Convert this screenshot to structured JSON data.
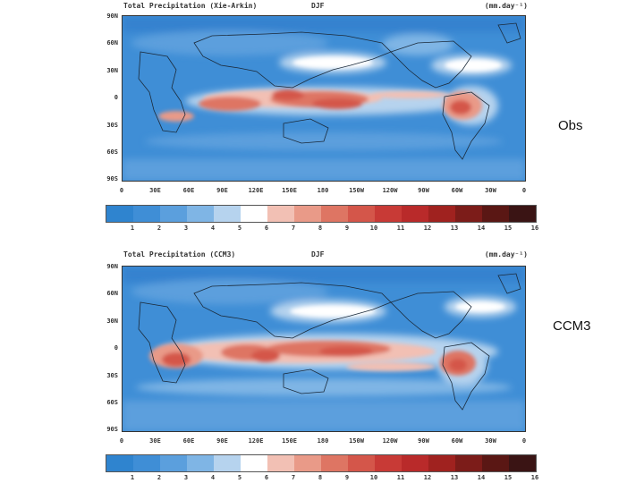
{
  "panels": [
    {
      "title": "Total Precipitation (Xie-Arkin)",
      "season": "DJF",
      "units": "(mm.day⁻¹)",
      "side_label": "Obs"
    },
    {
      "title": "Total Precipitation (CCM3)",
      "season": "DJF",
      "units": "(mm.day⁻¹)",
      "side_label": "CCM3"
    }
  ],
  "lat_ticks": [
    "90N",
    "60N",
    "30N",
    "0",
    "30S",
    "60S",
    "90S"
  ],
  "lon_ticks": [
    "0",
    "30E",
    "60E",
    "90E",
    "120E",
    "150E",
    "180",
    "150W",
    "120W",
    "90W",
    "60W",
    "30W",
    "0"
  ],
  "colorbar": {
    "labels": [
      "1",
      "2",
      "3",
      "4",
      "5",
      "6",
      "7",
      "8",
      "9",
      "10",
      "11",
      "12",
      "13",
      "14",
      "15",
      "16"
    ],
    "colors": [
      "#2f84cf",
      "#3f8ed6",
      "#5b9fdd",
      "#7fb5e5",
      "#b6d3ee",
      "#ffffff",
      "#f2c0b4",
      "#e99a88",
      "#de7563",
      "#d4564a",
      "#c83a36",
      "#b92a2a",
      "#a0221f",
      "#7c1c19",
      "#5a1714",
      "#3a1414"
    ]
  }
}
